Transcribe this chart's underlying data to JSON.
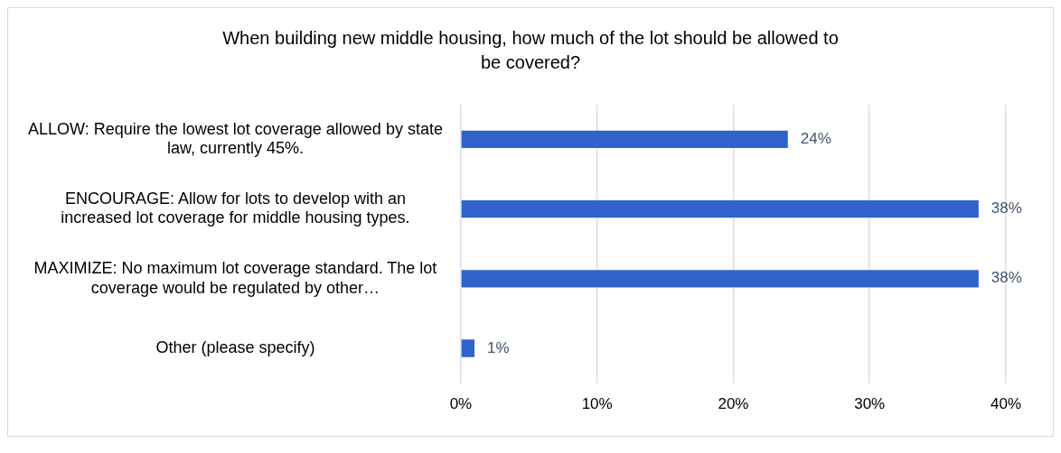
{
  "chart_data": {
    "type": "bar",
    "orientation": "horizontal",
    "title": "When building new middle housing, how much of the lot should be allowed to be covered?",
    "categories": [
      "ALLOW: Require the lowest lot coverage allowed by state law, currently 45%.",
      "ENCOURAGE: Allow for lots to develop with an increased lot coverage for middle housing types.",
      "MAXIMIZE: No maximum lot coverage standard. The lot coverage would be regulated by other…",
      "Other (please specify)"
    ],
    "values": [
      24,
      38,
      38,
      1
    ],
    "color": "#2f63c9",
    "value_labels": [
      "24%",
      "38%",
      "38%",
      "1%"
    ],
    "xlim": [
      0,
      40
    ],
    "xticks": [
      {
        "value": 0,
        "label": "0%"
      },
      {
        "value": 10,
        "label": "10%"
      },
      {
        "value": 20,
        "label": "20%"
      },
      {
        "value": 30,
        "label": "30%"
      },
      {
        "value": 40,
        "label": "40%"
      }
    ],
    "grid": "x",
    "legend": false
  }
}
